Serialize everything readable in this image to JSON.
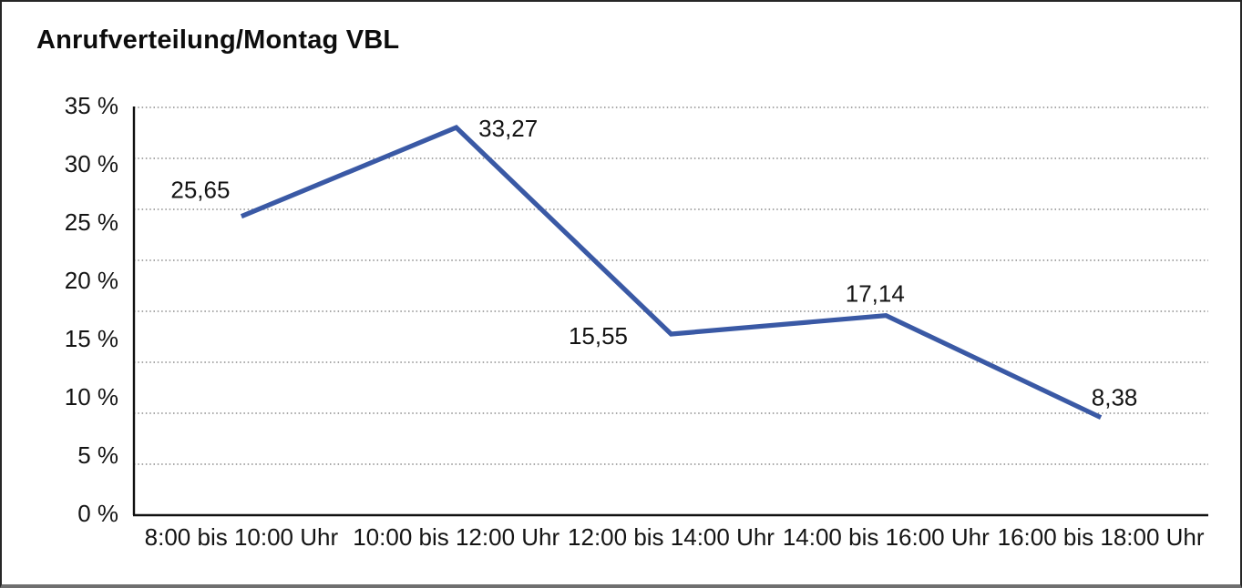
{
  "title": "Anrufverteilung/Montag VBL",
  "colors": {
    "line": "#3a59a5",
    "grid": "#8c8c8c",
    "axis": "#111111",
    "text": "#141414",
    "background": "#ffffff",
    "border": "#262626"
  },
  "chart_data": {
    "type": "line",
    "title": "Anrufverteilung/Montag VBL",
    "categories": [
      "8:00 bis 10:00 Uhr",
      "10:00 bis 12:00 Uhr",
      "12:00 bis 14:00 Uhr",
      "14:00 bis 16:00 Uhr",
      "16:00 bis 18:00 Uhr"
    ],
    "values": [
      25.65,
      33.27,
      15.55,
      17.14,
      8.38
    ],
    "data_labels": [
      "25,65",
      "33,27",
      "15,55",
      "17,14",
      "8,38"
    ],
    "xlabel": "",
    "ylabel": "",
    "ylim": [
      0,
      35
    ],
    "y_ticks": [
      {
        "label": "35 %",
        "value": 35
      },
      {
        "label": "30 %",
        "value": 30
      },
      {
        "label": "25 %",
        "value": 25
      },
      {
        "label": "20 %",
        "value": 20
      },
      {
        "label": "15 %",
        "value": 15
      },
      {
        "label": "10 %",
        "value": 10
      },
      {
        "label": "5 %",
        "value": 5
      },
      {
        "label": "0 %",
        "value": 0
      }
    ],
    "grid": "horizontal-dotted",
    "gridline_count": 9,
    "legend": "none"
  }
}
